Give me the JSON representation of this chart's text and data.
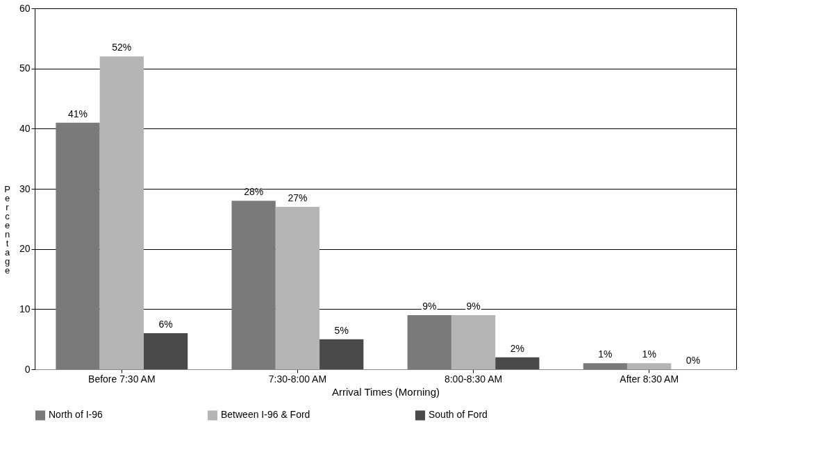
{
  "chart_data": {
    "type": "bar",
    "xlabel": "Arrival Times (Morning)",
    "ylabel": "Percentage",
    "categories": [
      "Before 7:30 AM",
      "7:30-8:00 AM",
      "8:00-8:30 AM",
      "After 8:30 AM"
    ],
    "series": [
      {
        "name": "North of I-96",
        "color": "#7a7a7a",
        "values": [
          41,
          28,
          9,
          1
        ]
      },
      {
        "name": "Between I-96 & Ford",
        "color": "#b5b5b5",
        "values": [
          52,
          27,
          9,
          1
        ]
      },
      {
        "name": "South of Ford",
        "color": "#4a4a4a",
        "values": [
          6,
          5,
          2,
          0
        ]
      }
    ],
    "ylim": [
      0,
      60
    ],
    "yticks": [
      0,
      10,
      20,
      30,
      40,
      50,
      60
    ],
    "grid": "y",
    "legend": "bottom",
    "value_labels": [
      [
        "41%",
        "28%",
        "9%",
        "1%"
      ],
      [
        "52%",
        "27%",
        "9%",
        "1%"
      ],
      [
        "6%",
        "5%",
        "2%",
        "0%"
      ]
    ]
  }
}
